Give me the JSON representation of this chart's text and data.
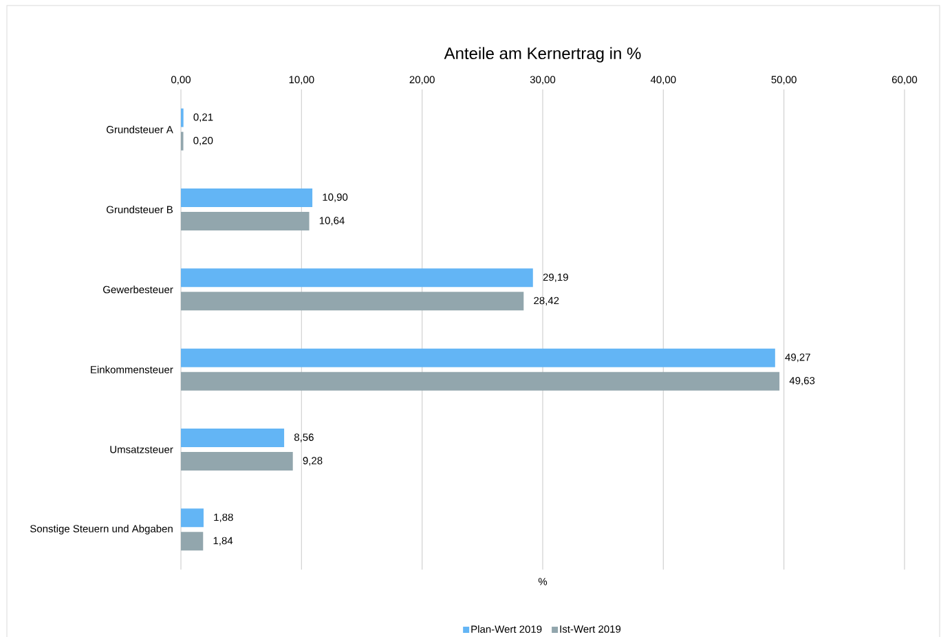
{
  "chart_data": {
    "type": "bar",
    "orientation": "horizontal",
    "title": "Anteile am Kernertrag in %",
    "xlabel": "%",
    "categories": [
      "Grundsteuer A",
      "Grundsteuer B",
      "Gewerbesteuer",
      "Einkommensteuer",
      "Umsatzsteuer",
      "Sonstige Steuern und Abgaben"
    ],
    "series": [
      {
        "name": "Plan-Wert 2019",
        "color": "#63b5f5",
        "values": [
          0.21,
          10.9,
          29.19,
          49.27,
          8.56,
          1.88
        ],
        "value_labels": [
          "0,21",
          "10,90",
          "29,19",
          "49,27",
          "8,56",
          "1,88"
        ]
      },
      {
        "name": "Ist-Wert 2019",
        "color": "#92a6ad",
        "values": [
          0.2,
          10.64,
          28.42,
          49.63,
          9.28,
          1.84
        ],
        "value_labels": [
          "0,20",
          "10,64",
          "28,42",
          "49,63",
          "9,28",
          "1,84"
        ]
      }
    ],
    "xlim": [
      0,
      60
    ],
    "xticks": [
      {
        "value": 0,
        "label": "0,00"
      },
      {
        "value": 10,
        "label": "10,00"
      },
      {
        "value": 20,
        "label": "20,00"
      },
      {
        "value": 30,
        "label": "30,00"
      },
      {
        "value": 40,
        "label": "40,00"
      },
      {
        "value": 50,
        "label": "50,00"
      },
      {
        "value": 60,
        "label": "60,00"
      }
    ],
    "grid": "x",
    "legend": "bottom"
  }
}
